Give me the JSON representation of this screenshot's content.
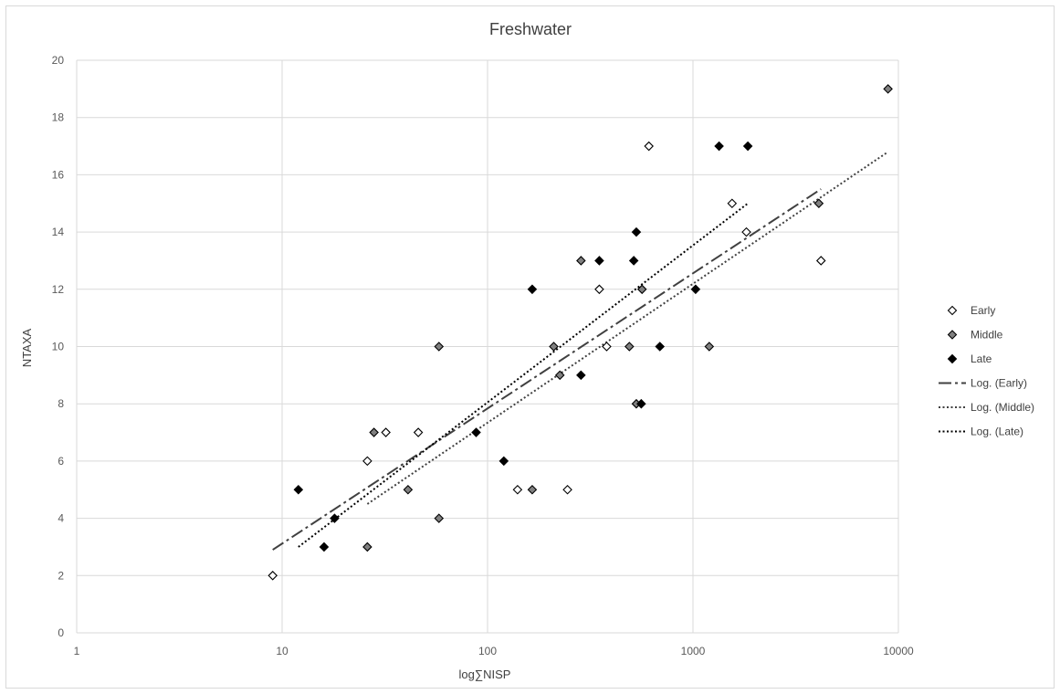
{
  "chart_data": {
    "type": "scatter",
    "title": "Freshwater",
    "xlabel": "log∑NISP",
    "ylabel": "NTAXA",
    "x_scale": "log",
    "xlim": [
      1,
      10000
    ],
    "ylim": [
      0,
      20
    ],
    "x_ticks": [
      "1",
      "10",
      "100",
      "1000",
      "10000"
    ],
    "y_ticks": [
      "0",
      "2",
      "4",
      "6",
      "8",
      "10",
      "12",
      "14",
      "16",
      "18",
      "20"
    ],
    "grid": true,
    "legend_position": "right",
    "series": [
      {
        "name": "Early",
        "marker": "diamond-open",
        "color": "#ffffff",
        "points": [
          [
            9,
            2
          ],
          [
            26,
            6
          ],
          [
            32,
            7
          ],
          [
            46,
            7
          ],
          [
            140,
            5
          ],
          [
            245,
            5
          ],
          [
            350,
            12
          ],
          [
            380,
            10
          ],
          [
            610,
            17
          ],
          [
            1550,
            15
          ],
          [
            1820,
            14
          ],
          [
            4200,
            13
          ]
        ]
      },
      {
        "name": "Middle",
        "marker": "diamond-grey",
        "color": "#808080",
        "points": [
          [
            26,
            3
          ],
          [
            28,
            7
          ],
          [
            41,
            5
          ],
          [
            58,
            10
          ],
          [
            58,
            4
          ],
          [
            165,
            5
          ],
          [
            210,
            10
          ],
          [
            225,
            9
          ],
          [
            285,
            13
          ],
          [
            490,
            10
          ],
          [
            530,
            8
          ],
          [
            565,
            12
          ],
          [
            1200,
            10
          ],
          [
            4100,
            15
          ],
          [
            8900,
            19
          ]
        ]
      },
      {
        "name": "Late",
        "marker": "diamond-black",
        "color": "#000000",
        "points": [
          [
            12,
            5
          ],
          [
            16,
            3
          ],
          [
            18,
            4
          ],
          [
            88,
            7
          ],
          [
            120,
            6
          ],
          [
            165,
            12
          ],
          [
            285,
            9
          ],
          [
            350,
            13
          ],
          [
            515,
            13
          ],
          [
            530,
            14
          ],
          [
            560,
            8
          ],
          [
            690,
            10
          ],
          [
            1030,
            12
          ],
          [
            1340,
            17
          ],
          [
            1850,
            17
          ]
        ]
      }
    ],
    "trendlines": [
      {
        "name": "Log. (Early)",
        "style": "dash-dot",
        "color": "#404040",
        "x_range": [
          9,
          4200
        ],
        "y_range": [
          2.9,
          15.5
        ]
      },
      {
        "name": "Log. (Middle)",
        "style": "dotted",
        "color": "#404040",
        "x_range": [
          26,
          8900
        ],
        "y_range": [
          4.5,
          16.8
        ]
      },
      {
        "name": "Log. (Late)",
        "style": "dotted",
        "color": "#000000",
        "x_range": [
          12,
          1850
        ],
        "y_range": [
          3.0,
          15.0
        ]
      }
    ]
  }
}
